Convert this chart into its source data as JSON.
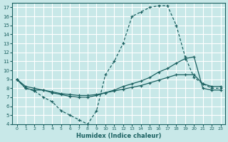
{
  "xlabel": "Humidex (Indice chaleur)",
  "bg_color": "#c8e8e8",
  "grid_color": "#ffffff",
  "line_color": "#1a6060",
  "xlim": [
    -0.5,
    23.5
  ],
  "ylim": [
    4,
    17.5
  ],
  "xticks": [
    0,
    1,
    2,
    3,
    4,
    5,
    6,
    7,
    8,
    9,
    10,
    11,
    12,
    13,
    14,
    15,
    16,
    17,
    18,
    19,
    20,
    21,
    22,
    23
  ],
  "yticks": [
    4,
    5,
    6,
    7,
    8,
    9,
    10,
    11,
    12,
    13,
    14,
    15,
    16,
    17
  ],
  "line1_x": [
    0,
    1,
    2,
    3,
    4,
    5,
    6,
    7,
    8,
    9,
    10,
    11,
    12,
    13,
    14,
    15,
    16,
    17,
    18,
    19,
    20,
    21,
    22,
    23
  ],
  "line1_y": [
    9.0,
    8.0,
    7.7,
    7.0,
    6.5,
    5.5,
    5.0,
    4.5,
    4.0,
    5.5,
    9.5,
    11.0,
    13.0,
    16.0,
    16.5,
    17.0,
    17.2,
    17.2,
    15.0,
    11.5,
    9.2,
    8.5,
    8.0,
    8.0
  ],
  "line2_x": [
    0,
    1,
    2,
    3,
    4,
    5,
    6,
    7,
    8,
    9,
    10,
    11,
    12,
    13,
    14,
    15,
    16,
    17,
    18,
    19,
    20,
    21,
    22,
    23
  ],
  "line2_y": [
    9.0,
    8.2,
    8.0,
    7.8,
    7.5,
    7.3,
    7.1,
    7.0,
    7.0,
    7.2,
    7.5,
    7.8,
    8.2,
    8.5,
    8.8,
    9.2,
    9.8,
    10.2,
    10.8,
    11.3,
    11.5,
    8.0,
    7.8,
    7.8
  ],
  "line3_x": [
    0,
    1,
    2,
    3,
    4,
    5,
    6,
    7,
    8,
    9,
    10,
    11,
    12,
    13,
    14,
    15,
    16,
    17,
    18,
    19,
    20,
    21,
    22,
    23
  ],
  "line3_y": [
    9.0,
    8.0,
    7.8,
    7.8,
    7.6,
    7.4,
    7.3,
    7.2,
    7.2,
    7.3,
    7.5,
    7.7,
    7.9,
    8.1,
    8.3,
    8.6,
    8.9,
    9.2,
    9.5,
    9.5,
    9.5,
    8.5,
    8.2,
    8.2
  ]
}
